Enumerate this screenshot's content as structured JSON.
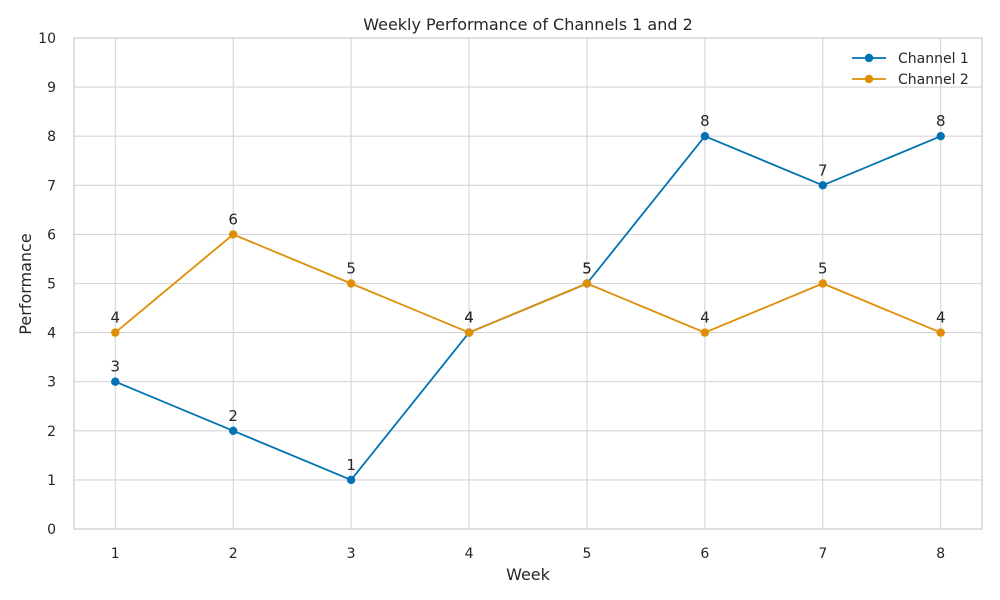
{
  "chart_data": {
    "type": "line",
    "title": "Weekly Performance of Channels 1 and 2",
    "xlabel": "Week",
    "ylabel": "Performance",
    "x": [
      1,
      2,
      3,
      4,
      5,
      6,
      7,
      8
    ],
    "xlim": [
      0.65,
      8.35
    ],
    "ylim": [
      0,
      10
    ],
    "yticks": [
      0,
      1,
      2,
      3,
      4,
      5,
      6,
      7,
      8,
      9,
      10
    ],
    "grid": true,
    "legend_position": "top-right",
    "data_labels": true,
    "series": [
      {
        "name": "Channel 1",
        "values": [
          3,
          2,
          1,
          4,
          5,
          8,
          7,
          8
        ],
        "color": "#0173b2",
        "marker": "circle"
      },
      {
        "name": "Channel 2",
        "values": [
          4,
          6,
          5,
          4,
          5,
          4,
          5,
          4
        ],
        "color": "#de8f05",
        "marker": "circle"
      }
    ]
  }
}
